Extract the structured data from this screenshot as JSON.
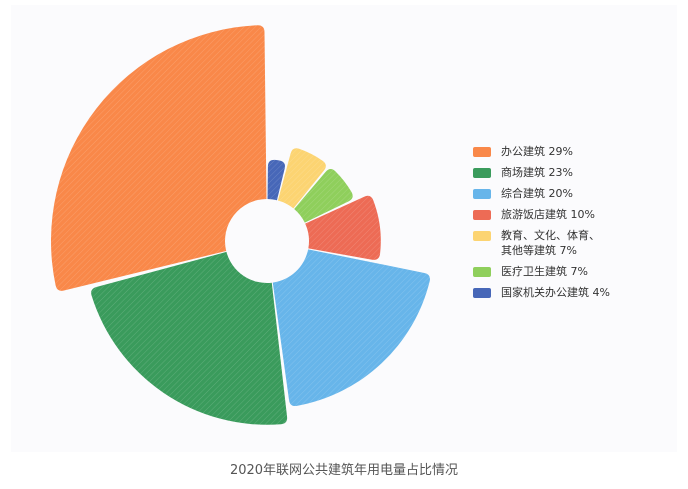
{
  "chart_data": {
    "type": "pie",
    "variant": "rose",
    "caption": "2020年联网公共建筑年用电量占比情况",
    "legend_position": "right",
    "series": [
      {
        "name": "办公建筑",
        "value": 29,
        "label": "办公建筑    29%",
        "color": "#f98849"
      },
      {
        "name": "商场建筑",
        "value": 23,
        "label": "商场建筑    23%",
        "color": "#3a9b5c"
      },
      {
        "name": "综合建筑",
        "value": 20,
        "label": "综合建筑    20%",
        "color": "#67b5ea"
      },
      {
        "name": "旅游饭店建筑",
        "value": 10,
        "label": "旅游饭店建筑    10%",
        "color": "#ed6b55"
      },
      {
        "name": "教育、文化、体育、其他等建筑",
        "value": 7,
        "label": "教育、文化、体育、\n其他等建筑    7%",
        "color": "#fcd472"
      },
      {
        "name": "医疗卫生建筑",
        "value": 7,
        "label": "医疗卫生建筑    7%",
        "color": "#8fcf5c"
      },
      {
        "name": "国家机关办公建筑",
        "value": 4,
        "label": "国家机关办公建筑    4%",
        "color": "#4767b8"
      }
    ]
  }
}
